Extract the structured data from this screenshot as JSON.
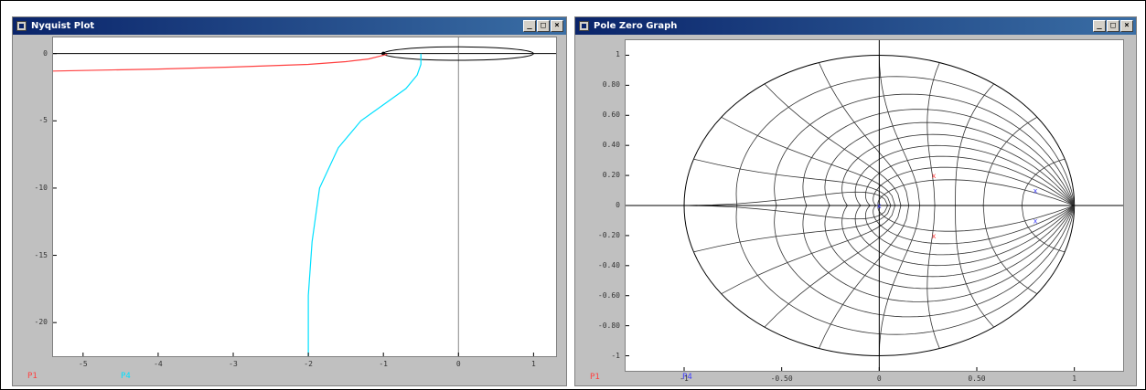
{
  "windows": {
    "nyquist": {
      "title": "Nyquist Plot",
      "controls": {
        "minimize": "_",
        "maximize": "□",
        "close": "×"
      },
      "legend": [
        {
          "label": "P1",
          "color": "#ff4040"
        },
        {
          "label": "P4",
          "color": "#00e0ff"
        }
      ]
    },
    "polezero": {
      "title": "Pole Zero Graph",
      "controls": {
        "minimize": "_",
        "maximize": "□",
        "close": "×"
      },
      "legend": [
        {
          "label": "P1",
          "color": "#ff4040"
        },
        {
          "label": "P4",
          "color": "#4040ff"
        }
      ]
    }
  },
  "chart_data": [
    {
      "type": "line",
      "title": "Nyquist Plot",
      "xlabel": "",
      "ylabel": "",
      "xlim": [
        -5.4,
        1.3
      ],
      "ylim": [
        -22.5,
        1.2
      ],
      "xticks": [
        "-5",
        "-4",
        "-3",
        "-2",
        "-1",
        "0",
        "1"
      ],
      "yticks": [
        "0",
        "-5",
        "-10",
        "-15",
        "-20"
      ],
      "grid": false,
      "series": [
        {
          "name": "P1",
          "color": "#ff4040",
          "x": [
            -5.4,
            -4.0,
            -3.0,
            -2.0,
            -1.5,
            -1.2,
            -1.05,
            -0.95
          ],
          "y": [
            -1.3,
            -1.15,
            -1.0,
            -0.8,
            -0.6,
            -0.4,
            -0.2,
            -0.05
          ]
        },
        {
          "name": "P4",
          "color": "#00e0ff",
          "x": [
            -0.5,
            -0.5,
            -0.55,
            -0.7,
            -0.95,
            -1.3,
            -1.6,
            -1.85,
            -1.95,
            -2.0,
            -2.0
          ],
          "y": [
            0.0,
            -0.8,
            -1.6,
            -2.6,
            -3.6,
            -5.0,
            -7.0,
            -10.0,
            -14.0,
            -18.0,
            -22.5
          ]
        }
      ],
      "annotations": [
        {
          "type": "ellipse",
          "cx": 0.0,
          "cy": 0.0,
          "rx": 1.0,
          "ry": 0.5,
          "color": "#000000"
        }
      ]
    },
    {
      "type": "scatter",
      "title": "Pole Zero Graph",
      "xlabel": "",
      "ylabel": "",
      "xlim": [
        -1.3,
        1.25
      ],
      "ylim": [
        -1.1,
        1.1
      ],
      "xticks": [
        "-1",
        "-0.50",
        "0",
        "0.50",
        "1"
      ],
      "yticks": [
        "1",
        "0.80",
        "0.60",
        "0.40",
        "0.20",
        "0",
        "-0.20",
        "-0.40",
        "-0.60",
        "-0.80",
        "-1"
      ],
      "grid": "z-plane damping/frequency grid",
      "series": [
        {
          "name": "P1",
          "color": "#ff4040",
          "marker": "x",
          "points": [
            {
              "x": 0.28,
              "y": 0.2
            },
            {
              "x": 0.28,
              "y": -0.2
            }
          ]
        },
        {
          "name": "P4",
          "color": "#4040ff",
          "marker": "x",
          "points": [
            {
              "x": 0.8,
              "y": 0.1
            },
            {
              "x": 0.8,
              "y": -0.1
            },
            {
              "x": 0.0,
              "y": 0.0
            }
          ]
        }
      ]
    }
  ]
}
